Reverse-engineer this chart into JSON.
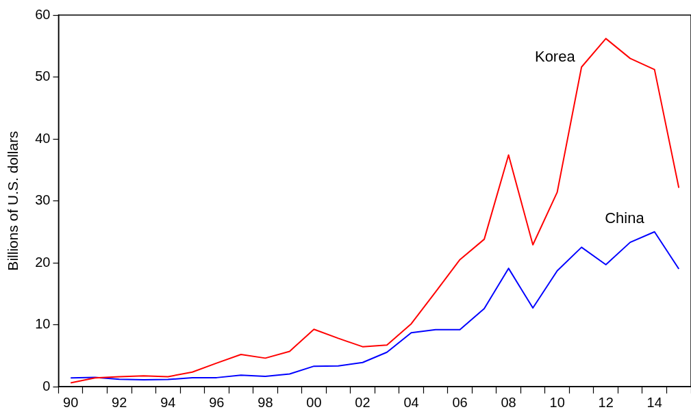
{
  "chart_data": {
    "type": "line",
    "ylabel": "Billions of U.S. dollars",
    "categories": [
      "90",
      null,
      "92",
      null,
      "94",
      null,
      "96",
      null,
      "98",
      null,
      "00",
      null,
      "02",
      null,
      "04",
      null,
      "06",
      null,
      "08",
      null,
      "10",
      null,
      "12",
      null,
      "14",
      null
    ],
    "series": [
      {
        "name": "Korea",
        "color": "#ff0000",
        "values": [
          0.6,
          1.4,
          1.6,
          1.75,
          1.6,
          2.35,
          3.8,
          5.2,
          4.6,
          5.7,
          9.25,
          7.8,
          6.45,
          6.7,
          10.15,
          15.3,
          20.5,
          23.8,
          37.4,
          22.9,
          31.4,
          51.6,
          56.2,
          53.0,
          51.2,
          32.1
        ]
      },
      {
        "name": "China",
        "color": "#0000ff",
        "values": [
          1.4,
          1.5,
          1.2,
          1.1,
          1.15,
          1.45,
          1.45,
          1.85,
          1.65,
          2.05,
          3.3,
          3.35,
          3.9,
          5.55,
          8.7,
          9.2,
          9.2,
          12.6,
          19.1,
          12.7,
          18.7,
          22.5,
          19.7,
          23.3,
          25.0,
          19.0
        ]
      }
    ],
    "ylim": [
      0,
      60
    ],
    "yticks": [
      0,
      10,
      20,
      30,
      40,
      50,
      60
    ],
    "grid": false,
    "legend": false,
    "marker": "none",
    "line_style": "solid"
  }
}
